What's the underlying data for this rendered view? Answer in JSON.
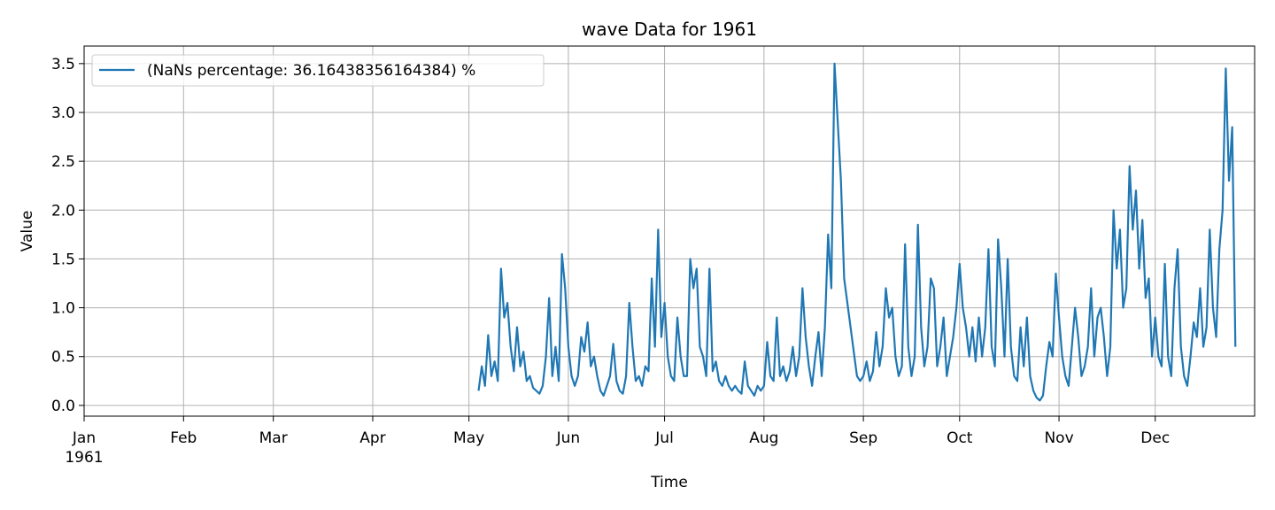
{
  "chart_data": {
    "type": "line",
    "title": "wave Data for 1961",
    "xlabel": "Time",
    "ylabel": "Value",
    "xlim": [
      0,
      365
    ],
    "ylim": [
      -0.11,
      3.68
    ],
    "xticks": [
      {
        "value": 0,
        "label": "Jan\n1961"
      },
      {
        "value": 31,
        "label": "Feb"
      },
      {
        "value": 59,
        "label": "Mar"
      },
      {
        "value": 90,
        "label": "Apr"
      },
      {
        "value": 120,
        "label": "May"
      },
      {
        "value": 151,
        "label": "Jun"
      },
      {
        "value": 181,
        "label": "Jul"
      },
      {
        "value": 212,
        "label": "Aug"
      },
      {
        "value": 243,
        "label": "Sep"
      },
      {
        "value": 273,
        "label": "Oct"
      },
      {
        "value": 304,
        "label": "Nov"
      },
      {
        "value": 334,
        "label": "Dec"
      }
    ],
    "yticks": [
      {
        "value": 0,
        "label": "0.0"
      },
      0.5,
      {
        "value": 1,
        "label": "1.0"
      },
      1.5,
      {
        "value": 2,
        "label": "2.0"
      },
      2.5,
      {
        "value": 3,
        "label": "3.0"
      },
      3.5
    ],
    "grid": true,
    "legend": "upper left",
    "x": [
      123,
      124,
      125,
      126,
      127,
      128,
      129,
      130,
      131,
      132,
      133,
      134,
      135,
      136,
      137,
      138,
      139,
      140,
      141,
      142,
      143,
      144,
      145,
      146,
      147,
      148,
      149,
      150,
      151,
      152,
      153,
      154,
      155,
      156,
      157,
      158,
      159,
      160,
      161,
      162,
      163,
      164,
      165,
      166,
      167,
      168,
      169,
      170,
      171,
      172,
      173,
      174,
      175,
      176,
      177,
      178,
      179,
      180,
      181,
      182,
      183,
      184,
      185,
      186,
      187,
      188,
      189,
      190,
      191,
      192,
      193,
      194,
      195,
      196,
      197,
      198,
      199,
      200,
      201,
      202,
      203,
      204,
      205,
      206,
      207,
      208,
      209,
      210,
      211,
      212,
      213,
      214,
      215,
      216,
      217,
      218,
      219,
      220,
      221,
      222,
      223,
      224,
      225,
      226,
      227,
      228,
      229,
      230,
      231,
      232,
      233,
      234,
      235,
      236,
      237,
      238,
      239,
      240,
      241,
      242,
      243,
      244,
      245,
      246,
      247,
      248,
      249,
      250,
      251,
      252,
      253,
      254,
      255,
      256,
      257,
      258,
      259,
      260,
      261,
      262,
      263,
      264,
      265,
      266,
      267,
      268,
      269,
      270,
      271,
      272,
      273,
      274,
      275,
      276,
      277,
      278,
      279,
      280,
      281,
      282,
      283,
      284,
      285,
      286,
      287,
      288,
      289,
      290,
      291,
      292,
      293,
      294,
      295,
      296,
      297,
      298,
      299,
      300,
      301,
      302,
      303,
      304,
      305,
      306,
      307,
      308,
      309,
      310,
      311,
      312,
      313,
      314,
      315,
      316,
      317,
      318,
      319,
      320,
      321,
      322,
      323,
      324,
      325,
      326,
      327,
      328,
      329,
      330,
      331,
      332,
      333,
      334,
      335,
      336,
      337,
      338,
      339,
      340,
      341,
      342,
      343,
      344,
      345,
      346,
      347,
      348,
      349,
      350,
      351,
      352,
      353,
      354,
      355,
      356,
      357,
      358,
      359
    ],
    "series": [
      {
        "name": "(NaNs percentage: 36.16438356164384) %",
        "color": "#1f77b4",
        "values": [
          0.15,
          0.4,
          0.2,
          0.72,
          0.3,
          0.45,
          0.25,
          1.4,
          0.9,
          1.05,
          0.6,
          0.35,
          0.8,
          0.4,
          0.55,
          0.25,
          0.3,
          0.18,
          0.15,
          0.12,
          0.2,
          0.5,
          1.1,
          0.3,
          0.6,
          0.25,
          1.55,
          1.2,
          0.6,
          0.3,
          0.2,
          0.3,
          0.7,
          0.55,
          0.85,
          0.4,
          0.5,
          0.3,
          0.15,
          0.1,
          0.2,
          0.3,
          0.63,
          0.25,
          0.15,
          0.12,
          0.3,
          1.05,
          0.6,
          0.25,
          0.3,
          0.2,
          0.4,
          0.35,
          1.3,
          0.6,
          1.8,
          0.7,
          1.05,
          0.5,
          0.3,
          0.25,
          0.9,
          0.5,
          0.3,
          0.3,
          1.5,
          1.2,
          1.4,
          0.6,
          0.5,
          0.3,
          1.4,
          0.35,
          0.45,
          0.25,
          0.2,
          0.3,
          0.2,
          0.15,
          0.2,
          0.15,
          0.12,
          0.45,
          0.2,
          0.15,
          0.1,
          0.2,
          0.15,
          0.2,
          0.65,
          0.3,
          0.25,
          0.9,
          0.3,
          0.4,
          0.25,
          0.35,
          0.6,
          0.3,
          0.5,
          1.2,
          0.7,
          0.4,
          0.2,
          0.5,
          0.75,
          0.3,
          0.8,
          1.75,
          1.2,
          3.5,
          2.9,
          2.3,
          1.3,
          1.05,
          0.8,
          0.55,
          0.3,
          0.25,
          0.3,
          0.45,
          0.25,
          0.35,
          0.75,
          0.4,
          0.6,
          1.2,
          0.9,
          1.0,
          0.5,
          0.3,
          0.4,
          1.65,
          0.6,
          0.3,
          0.5,
          1.85,
          0.8,
          0.4,
          0.6,
          1.3,
          1.2,
          0.4,
          0.6,
          0.9,
          0.3,
          0.5,
          0.7,
          1.0,
          1.45,
          1.0,
          0.8,
          0.5,
          0.8,
          0.45,
          0.9,
          0.5,
          0.8,
          1.6,
          0.6,
          0.4,
          1.7,
          1.2,
          0.5,
          1.5,
          0.6,
          0.3,
          0.25,
          0.8,
          0.4,
          0.9,
          0.3,
          0.15,
          0.08,
          0.05,
          0.1,
          0.4,
          0.65,
          0.5,
          1.35,
          0.9,
          0.5,
          0.3,
          0.2,
          0.6,
          1.0,
          0.7,
          0.3,
          0.4,
          0.6,
          1.2,
          0.5,
          0.9,
          1.0,
          0.7,
          0.3,
          0.6,
          2.0,
          1.4,
          1.8,
          1.0,
          1.2,
          2.45,
          1.8,
          2.2,
          1.4,
          1.9,
          1.1,
          1.3,
          0.5,
          0.9,
          0.5,
          0.4,
          1.45,
          0.5,
          0.3,
          1.2,
          1.6,
          0.6,
          0.3,
          0.2,
          0.5,
          0.85,
          0.7,
          1.2,
          0.6,
          0.8,
          1.8,
          1.0,
          0.7,
          1.6,
          2.0,
          3.45,
          2.3,
          2.85,
          0.6
        ]
      }
    ]
  }
}
